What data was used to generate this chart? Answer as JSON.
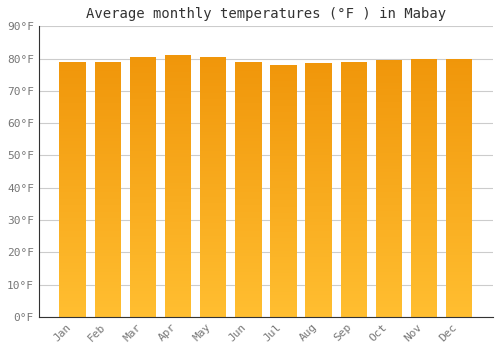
{
  "title": "Average monthly temperatures (°F ) in Mabay",
  "months": [
    "Jan",
    "Feb",
    "Mar",
    "Apr",
    "May",
    "Jun",
    "Jul",
    "Aug",
    "Sep",
    "Oct",
    "Nov",
    "Dec"
  ],
  "values": [
    79,
    79,
    80.5,
    81,
    80.5,
    79,
    78,
    78.5,
    79,
    79.5,
    80,
    80
  ],
  "ylim": [
    0,
    90
  ],
  "yticks": [
    0,
    10,
    20,
    30,
    40,
    50,
    60,
    70,
    80,
    90
  ],
  "bar_color_bottom": "#FFBE30",
  "bar_color_top": "#F0960A",
  "background_color": "#FFFFFF",
  "grid_color": "#CCCCCC",
  "title_fontsize": 10,
  "tick_fontsize": 8,
  "font_family": "monospace",
  "bar_width": 0.75
}
